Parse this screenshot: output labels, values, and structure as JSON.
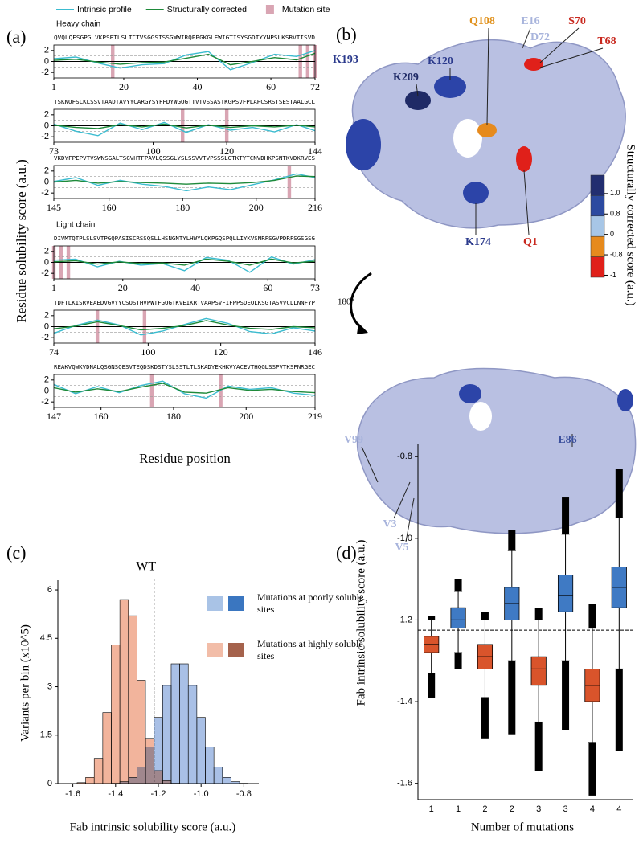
{
  "panel_labels": [
    "(a)",
    "(b)",
    "(c)",
    "(d)"
  ],
  "structure_panel": {
    "labels": [
      {
        "text": "K193",
        "color": "#2b3a8c"
      },
      {
        "text": "K209",
        "color": "#1f2a66"
      },
      {
        "text": "K120",
        "color": "#2b3a8c"
      },
      {
        "text": "Q108",
        "color": "#e0901a"
      },
      {
        "text": "E16",
        "color": "#a8b4dc"
      },
      {
        "text": "S70",
        "color": "#c8281e"
      },
      {
        "text": "D72",
        "color": "#a8b4dc"
      },
      {
        "text": "T68",
        "color": "#c8281e"
      },
      {
        "text": "K174",
        "color": "#2b3a8c"
      },
      {
        "text": "Q1",
        "color": "#c8281e"
      },
      {
        "text": "V99",
        "color": "#a8b4dc"
      },
      {
        "text": "E86",
        "color": "#3a4f9c"
      },
      {
        "text": "V3",
        "color": "#a8b4dc"
      },
      {
        "text": "V5",
        "color": "#a8b4dc"
      }
    ],
    "rotation": "180º",
    "colorbar": {
      "title": "Structurally corrected score (a.u.)",
      "ticks": [
        {
          "value": 1.0,
          "label": "1.0"
        },
        0.8,
        0,
        -0.8,
        -1
      ],
      "colors": [
        "#222e70",
        "#2c4aa0",
        "#a7c6e6",
        "#e68a1d",
        "#e0201a"
      ]
    }
  },
  "chart_data": [
    {
      "type": "line",
      "title": "Heavy chain",
      "ylabel": "Residue solubility score (a.u.)",
      "xlabel": "Residue position",
      "sequence": "QVQLQESGPGLVKPSETLSLTCTVSGGSISSGWWIRQPPGKGLEWIGTISYSGDTYYNPSLKSRVTISVD",
      "x": [
        1,
        7,
        13,
        19,
        25,
        31,
        37,
        43,
        49,
        55,
        61,
        67,
        72
      ],
      "xlim": [
        1,
        72
      ],
      "xticks": [
        1,
        20,
        40,
        60,
        72
      ],
      "ylim": [
        -3,
        3
      ],
      "yticks": [
        -2,
        0,
        2
      ],
      "hlines": [
        -1,
        1
      ],
      "series": [
        {
          "name": "Intrinsic profile",
          "color": "#3bbcd0",
          "values": [
            0.5,
            0.8,
            -0.3,
            -1.2,
            -0.6,
            -0.4,
            1.2,
            1.8,
            -1.5,
            -0.2,
            1.3,
            0.9,
            2.0
          ]
        },
        {
          "name": "Structurally corrected",
          "color": "#1e8a3a",
          "values": [
            0.2,
            0.4,
            -0.1,
            -0.5,
            -0.2,
            -0.1,
            0.6,
            1.3,
            -0.6,
            0,
            0.7,
            0.3,
            1.5
          ]
        },
        {
          "name": "Mutation site",
          "color": "#d9a5b3",
          "x": [
            17,
            68,
            70,
            72
          ]
        }
      ]
    },
    {
      "type": "line",
      "sequence": "TSKNQFSLKLSSVTAADTAVYYCARGYSYFFDYWGQGTTVTVSSASTKGPSVFPLAPCSRSTSESTAALGCL",
      "x": [
        73,
        79,
        85,
        91,
        97,
        103,
        109,
        115,
        121,
        127,
        133,
        139,
        144
      ],
      "xlim": [
        73,
        144
      ],
      "xticks": [
        73,
        100,
        120,
        144
      ],
      "ylim": [
        -3,
        3
      ],
      "yticks": [
        -2,
        0,
        2
      ],
      "hlines": [
        -1,
        1
      ],
      "series": [
        {
          "color": "#3bbcd0",
          "values": [
            0.3,
            -1.0,
            -1.8,
            0.5,
            -0.7,
            0.6,
            -1.2,
            0.2,
            -0.8,
            -0.3,
            -1.1,
            0.2,
            -0.9
          ]
        },
        {
          "color": "#1e8a3a",
          "values": [
            0.1,
            -0.3,
            -0.5,
            0.2,
            -0.2,
            0.3,
            -0.4,
            0.1,
            -0.3,
            0,
            -0.2,
            0.1,
            -0.2
          ]
        },
        {
          "color": "#d9a5b3",
          "x": [
            108,
            120
          ]
        }
      ]
    },
    {
      "type": "line",
      "sequence": "VKDYFPEPVTVSWNSGALTSGVHTFPAVLQSSGLYSLSSVVTVPSSSLGTKTYTCNVDHKPSNTKVDKRVES",
      "x": [
        145,
        151,
        157,
        163,
        169,
        175,
        181,
        187,
        193,
        199,
        205,
        211,
        216
      ],
      "xlim": [
        145,
        216
      ],
      "xticks": [
        145,
        160,
        180,
        200,
        216
      ],
      "ylim": [
        -3,
        3
      ],
      "yticks": [
        -2,
        0,
        2
      ],
      "hlines": [
        -1,
        1
      ],
      "series": [
        {
          "color": "#3bbcd0",
          "values": [
            0.1,
            0.8,
            -0.6,
            0.3,
            -0.4,
            -0.8,
            -1.6,
            -0.9,
            -1.4,
            -0.5,
            0.4,
            1.5,
            0.8
          ]
        },
        {
          "color": "#1e8a3a",
          "values": [
            0,
            0.3,
            -0.2,
            0.1,
            -0.1,
            -0.2,
            -0.4,
            -0.2,
            -0.3,
            -0.1,
            0.3,
            1.1,
            1.0
          ]
        },
        {
          "color": "#d9a5b3",
          "x": [
            209
          ]
        }
      ]
    },
    {
      "type": "line",
      "title": "Light chain",
      "sequence": "DIVMTQTPLSLSVTPGQPASISCRSSQSLLHSNGNTYLHWYLQKPGQSPQLLIYKVSNRFSGVPDRFSGSGSG",
      "x": [
        1,
        7,
        13,
        19,
        25,
        31,
        37,
        43,
        49,
        55,
        61,
        67,
        73
      ],
      "xlim": [
        1,
        73
      ],
      "xticks": [
        1,
        20,
        40,
        60,
        73
      ],
      "ylim": [
        -3,
        3
      ],
      "yticks": [
        -2,
        0,
        2
      ],
      "hlines": [
        -1,
        1
      ],
      "series": [
        {
          "color": "#3bbcd0",
          "values": [
            0.4,
            0.6,
            -0.8,
            0.2,
            -0.5,
            -0.2,
            -1.5,
            0.9,
            0.4,
            -1.8,
            1.0,
            -0.3,
            0.5
          ]
        },
        {
          "color": "#1e8a3a",
          "values": [
            0.1,
            0.3,
            -0.3,
            0.1,
            -0.2,
            -0.1,
            -0.5,
            0.6,
            0.2,
            -0.5,
            0.6,
            -0.1,
            0.2
          ]
        },
        {
          "color": "#d9a5b3",
          "x": [
            1,
            3,
            5
          ]
        }
      ]
    },
    {
      "type": "line",
      "sequence": "TDFTLKISRVEAEDVGVYYCSQSTHVPWTFGQGTKVEIKRTVAAPSVFIFPPSDEQLKSGTASVVCLLNNFYP",
      "x": [
        74,
        80,
        86,
        92,
        98,
        104,
        110,
        116,
        122,
        128,
        134,
        140,
        146
      ],
      "xlim": [
        74,
        146
      ],
      "xticks": [
        74,
        100,
        120,
        146
      ],
      "ylim": [
        -3,
        3
      ],
      "yticks": [
        -2,
        0,
        2
      ],
      "hlines": [
        -1,
        1
      ],
      "series": [
        {
          "color": "#3bbcd0",
          "values": [
            -1.2,
            0.2,
            1.2,
            0.3,
            -1.5,
            -0.8,
            0.4,
            1.5,
            0.6,
            -0.9,
            -1.3,
            -0.2,
            -0.8
          ]
        },
        {
          "color": "#1e8a3a",
          "values": [
            -0.4,
            0.1,
            0.9,
            0.2,
            -0.6,
            -0.3,
            0.2,
            1.1,
            0.3,
            -0.3,
            -0.5,
            0,
            -0.2
          ]
        },
        {
          "color": "#d9a5b3",
          "x": [
            86,
            99
          ]
        }
      ]
    },
    {
      "type": "line",
      "sequence": "REAKVQWKVDNALQSGNSQESVTEQDSKDSTYSLSSTLTLSKADYEKHKVYACEVTHQGLSSPVTKSFNRGEC",
      "x": [
        147,
        153,
        159,
        165,
        171,
        177,
        183,
        189,
        195,
        201,
        207,
        213,
        219
      ],
      "xlim": [
        147,
        219
      ],
      "xticks": [
        147,
        160,
        180,
        200,
        219
      ],
      "ylim": [
        -3,
        3
      ],
      "yticks": [
        -2,
        0,
        2
      ],
      "hlines": [
        -1,
        1
      ],
      "series": [
        {
          "color": "#3bbcd0",
          "values": [
            1.2,
            -0.5,
            0.8,
            -0.3,
            1.0,
            1.8,
            -0.5,
            -1.3,
            0.9,
            0.3,
            0.6,
            -0.4,
            -0.8
          ]
        },
        {
          "color": "#1e8a3a",
          "values": [
            0.6,
            -0.2,
            0.4,
            -0.1,
            0.7,
            1.4,
            -0.2,
            -0.4,
            0.6,
            0.1,
            0.3,
            -0.1,
            -0.3
          ]
        },
        {
          "color": "#d9a5b3",
          "x": [
            174,
            193
          ]
        }
      ]
    },
    {
      "type": "histogram",
      "xlabel": "Fab intrinsic solubility score (a.u.)",
      "ylabel": "Variants per bin (x10^5)",
      "xlim": [
        -1.67,
        -0.73
      ],
      "xticks": [
        -1.6,
        -1.4,
        -1.2,
        {
          "value": -1,
          "label": "-1.0"
        },
        -0.8
      ],
      "ylim": [
        0,
        6.3
      ],
      "yticks": [
        0,
        1.5,
        3,
        4.5,
        6
      ],
      "reference_lines": [
        {
          "value": -1.22,
          "label": "WT"
        }
      ],
      "bins": [
        -1.62,
        -1.58,
        -1.54,
        -1.5,
        -1.46,
        -1.42,
        -1.38,
        -1.34,
        -1.3,
        -1.26,
        -1.22,
        -1.18,
        -1.14,
        -1.1,
        -1.06,
        -1.02,
        -0.98,
        -0.94,
        -0.9,
        -0.86,
        -0.82,
        -0.78
      ],
      "series": [
        {
          "name": "Mutations at poorly soluble sites",
          "color": "#a9c0e6",
          "swatch_colors": [
            "#a9c3e6",
            "#3a76c0"
          ],
          "values": [
            0,
            0,
            0,
            0,
            0,
            0.01,
            0.06,
            0.19,
            0.51,
            1.13,
            2.05,
            3.04,
            3.71,
            3.71,
            3.04,
            2.05,
            1.13,
            0.51,
            0.19,
            0.06,
            0.01
          ]
        },
        {
          "name": "Mutations at highly soluble sites",
          "color": "#f2b49c",
          "swatch_colors": [
            "#f2bda8",
            "#a5624c"
          ],
          "values": [
            0,
            0.03,
            0.19,
            0.78,
            2.2,
            4.3,
            5.7,
            5.2,
            3.2,
            1.4,
            0.4,
            0.09,
            0.01,
            0,
            0,
            0,
            0,
            0,
            0,
            0,
            0
          ]
        }
      ]
    },
    {
      "type": "box",
      "xlabel": "Number of mutations",
      "ylabel": "Fab intrinsic solubility score (a.u.)",
      "categories": [
        "1",
        "1",
        "2",
        "2",
        "3",
        "3",
        "4",
        "4"
      ],
      "colors": [
        "#d9542b",
        "#3f7ac4",
        "#d9542b",
        "#3f7ac4",
        "#d9542b",
        "#3f7ac4",
        "#d9542b",
        "#3f7ac4"
      ],
      "ylim": [
        -1.64,
        -0.77
      ],
      "yticks": [
        -1.6,
        -1.4,
        -1.2,
        {
          "value": -1,
          "label": "-1.0"
        },
        -0.8
      ],
      "reference_lines": [
        {
          "value": -1.225
        }
      ],
      "boxes": [
        {
          "min": -1.39,
          "low": -1.33,
          "q1": -1.28,
          "median": -1.26,
          "q3": -1.24,
          "high": -1.2,
          "max": -1.19
        },
        {
          "min": -1.32,
          "low": -1.28,
          "q1": -1.22,
          "median": -1.2,
          "q3": -1.17,
          "high": -1.13,
          "max": -1.1
        },
        {
          "min": -1.49,
          "low": -1.39,
          "q1": -1.32,
          "median": -1.29,
          "q3": -1.26,
          "high": -1.2,
          "max": -1.18
        },
        {
          "min": -1.48,
          "low": -1.3,
          "q1": -1.2,
          "median": -1.16,
          "q3": -1.12,
          "high": -1.03,
          "max": -0.98
        },
        {
          "min": -1.57,
          "low": -1.45,
          "q1": -1.36,
          "median": -1.32,
          "q3": -1.29,
          "high": -1.2,
          "max": -1.17
        },
        {
          "min": -1.47,
          "low": -1.3,
          "q1": -1.18,
          "median": -1.14,
          "q3": -1.09,
          "high": -0.99,
          "max": -0.9
        },
        {
          "min": -1.63,
          "low": -1.5,
          "q1": -1.4,
          "median": -1.36,
          "q3": -1.32,
          "high": -1.22,
          "max": -1.16
        },
        {
          "min": -1.52,
          "low": -1.32,
          "q1": -1.17,
          "median": -1.12,
          "q3": -1.07,
          "high": -0.95,
          "max": -0.83
        }
      ]
    }
  ]
}
